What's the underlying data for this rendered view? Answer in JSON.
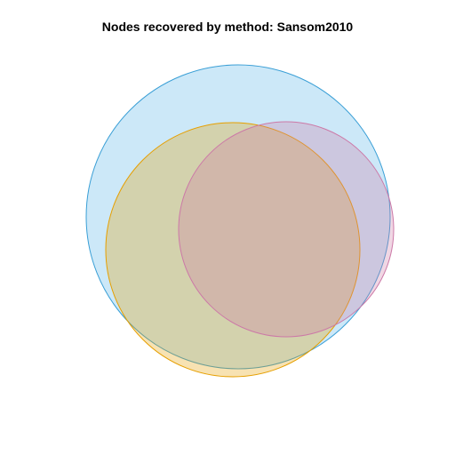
{
  "title": "Nodes recovered by method: Sansom2010",
  "diagram": {
    "type": "venn",
    "labels_shown": false,
    "sets": [
      {
        "id": "blue",
        "fill": "#56B4E9",
        "stroke": "#3A9FD6",
        "fill_opacity": 0.3
      },
      {
        "id": "orange",
        "fill": "#E69F00",
        "stroke": "#E69F00",
        "fill_opacity": 0.3
      },
      {
        "id": "pink",
        "fill": "#CC79A7",
        "stroke": "#CC79A7",
        "fill_opacity": 0.3
      }
    ]
  }
}
